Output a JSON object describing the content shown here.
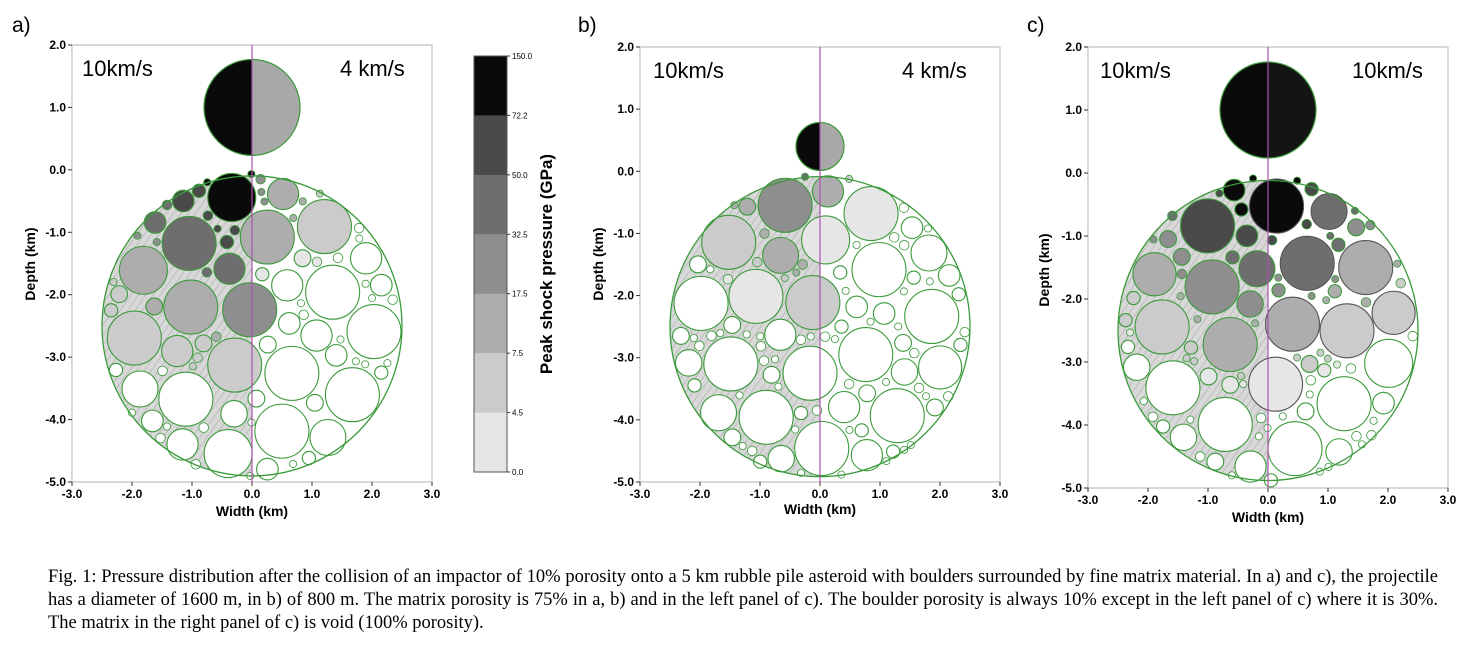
{
  "panels": [
    {
      "label": "a)",
      "left_speed": "10km/s",
      "right_speed": "4 km/s",
      "projectile_center_y_km": 1.0,
      "projectile_radius_km": 0.8,
      "right_matrix_void": false,
      "xticks": [
        "-3.0",
        "-2.0",
        "-1.0",
        "0.0",
        "1.0",
        "2.0",
        "3.0"
      ],
      "yticks": [
        "2.0",
        "1.0",
        "0.0",
        "-1.0",
        "-2.0",
        "-3.0",
        "-4.0",
        "-5.0"
      ],
      "xlabel": "Width (km)",
      "ylabel": "Depth (km)"
    },
    {
      "label": "b)",
      "left_speed": "10km/s",
      "right_speed": "4 km/s",
      "projectile_center_y_km": 0.4,
      "projectile_radius_km": 0.4,
      "right_matrix_void": false,
      "xticks": [
        "-3.0",
        "-2.0",
        "-1.0",
        "0.0",
        "1.0",
        "2.0",
        "3.0"
      ],
      "yticks": [
        "2.0",
        "1.0",
        "0.0",
        "-1.0",
        "-2.0",
        "-3.0",
        "-4.0",
        "-5.0"
      ],
      "xlabel": "Width (km)",
      "ylabel": "Depth (km)"
    },
    {
      "label": "c)",
      "left_speed": "10km/s",
      "right_speed": "10km/s",
      "projectile_center_y_km": 1.0,
      "projectile_radius_km": 0.8,
      "right_matrix_void": true,
      "xticks": [
        "-3.0",
        "-2.0",
        "-1.0",
        "0.0",
        "1.0",
        "2.0",
        "3.0"
      ],
      "yticks": [
        "2.0",
        "1.0",
        "0.0",
        "-1.0",
        "-2.0",
        "-3.0",
        "-4.0",
        "-5.0"
      ],
      "xlabel": "Width (km)",
      "ylabel": "Depth (km)"
    }
  ],
  "colorbar": {
    "label": "Peak shock pressure (GPa)",
    "ticks": [
      "150.0",
      "72.2",
      "50.0",
      "32.5",
      "17.5",
      "7.5",
      "4.5",
      "0.0"
    ],
    "colors": [
      "#0a0a0a",
      "#4a4a4a",
      "#6e6e6e",
      "#8e8e8e",
      "#adadad",
      "#cbcbcb",
      "#e6e6e6"
    ]
  },
  "caption": {
    "lines": [
      "Fig. 1: Pressure distribution after the collision of an impactor of 10% porosity onto a 5 km rubble pile asteroid with boulders surrounded by fine matrix",
      "material. In a) and c), the projectile has a diameter of 1600 m, in b) of 800 m. The matrix porosity is 75% in a, b) and in the left panel of c). The",
      "boulder porosity is always 10% except in the left panel of c) where it is 30%. The matrix in the right panel of c) is void (100% porosity)."
    ]
  },
  "colors": {
    "boulder_outline": "#3a9a3a",
    "center_line": "#b050b0",
    "frame": "#b0b0b0"
  }
}
